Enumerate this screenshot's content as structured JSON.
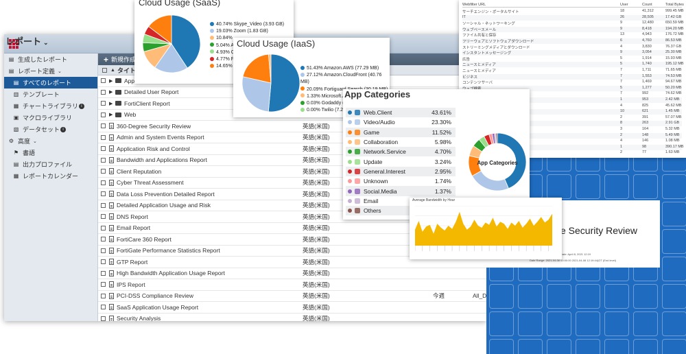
{
  "main": {
    "app_title": "レポート",
    "sidebar": [
      {
        "label": "生成したレポート",
        "icon": "document-icon",
        "sub": false,
        "active": false
      },
      {
        "label": "レポート定義",
        "icon": "document-icon",
        "sub": false,
        "active": false,
        "chevron": true
      },
      {
        "label": "すべてのレポート",
        "icon": "document-icon",
        "sub": true,
        "active": true
      },
      {
        "label": "テンプレート",
        "icon": "template-icon",
        "sub": true,
        "active": false
      },
      {
        "label": "チャートライブラリ",
        "icon": "chart-icon",
        "sub": true,
        "active": false,
        "info": true
      },
      {
        "label": "マクロライブラリ",
        "icon": "macro-icon",
        "sub": true,
        "active": false
      },
      {
        "label": "データセット",
        "icon": "dataset-icon",
        "sub": true,
        "active": false,
        "info": true
      },
      {
        "label": "高度",
        "icon": "gear-icon",
        "sub": false,
        "active": false,
        "chevron": true
      },
      {
        "label": "書語",
        "icon": "flag-icon",
        "sub": true,
        "active": false
      },
      {
        "label": "出力プロファイル",
        "icon": "output-icon",
        "sub": true,
        "active": false
      },
      {
        "label": "レポートカレンダー",
        "icon": "calendar-icon",
        "sub": true,
        "active": false
      }
    ],
    "toolbar_new": "新規作成",
    "header_name": "タイトル",
    "rows": [
      {
        "name": "Application",
        "type": "folder",
        "lang": "",
        "sched": "",
        "tag": ""
      },
      {
        "name": "Detailed User Report",
        "type": "folder",
        "lang": "",
        "sched": "",
        "tag": ""
      },
      {
        "name": "FortiClient Report",
        "type": "folder",
        "lang": "",
        "sched": "",
        "tag": ""
      },
      {
        "name": "Web",
        "type": "folder",
        "lang": "",
        "sched": "",
        "tag": ""
      },
      {
        "name": "360-Degree Security Review",
        "type": "doc",
        "lang": "英語(米国)",
        "sched": "",
        "tag": ""
      },
      {
        "name": "Admin and System Events Report",
        "type": "doc",
        "lang": "英語(米国)",
        "sched": "",
        "tag": ""
      },
      {
        "name": "Application Risk and Control",
        "type": "doc",
        "lang": "英語(米国)",
        "sched": "",
        "tag": ""
      },
      {
        "name": "Bandwidth and Applications Report",
        "type": "doc",
        "lang": "英語(米国)",
        "sched": "",
        "tag": ""
      },
      {
        "name": "Client Reputation",
        "type": "doc",
        "lang": "英語(米国)",
        "sched": "",
        "tag": ""
      },
      {
        "name": "Cyber Threat Assessment",
        "type": "doc",
        "lang": "英語(米国)",
        "sched": "",
        "tag": ""
      },
      {
        "name": "Data Loss Prevention Detailed Report",
        "type": "doc",
        "lang": "英語(米国)",
        "sched": "",
        "tag": ""
      },
      {
        "name": "Detailed Application Usage and Risk",
        "type": "doc",
        "lang": "英語(米国)",
        "sched": "",
        "tag": ""
      },
      {
        "name": "DNS Report",
        "type": "doc",
        "lang": "英語(米国)",
        "sched": "",
        "tag": ""
      },
      {
        "name": "Email Report",
        "type": "doc",
        "lang": "英語(米国)",
        "sched": "",
        "tag": ""
      },
      {
        "name": "FortiCare 360 Report",
        "type": "doc",
        "lang": "英語(米国)",
        "sched": "",
        "tag": ""
      },
      {
        "name": "FortiGate Performance Statistics Report",
        "type": "doc",
        "lang": "英語(米国)",
        "sched": "",
        "tag": ""
      },
      {
        "name": "GTP Report",
        "type": "doc",
        "lang": "英語(米国)",
        "sched": "",
        "tag": ""
      },
      {
        "name": "High Bandwidth Application Usage Report",
        "type": "doc",
        "lang": "英語(米国)",
        "sched": "",
        "tag": ""
      },
      {
        "name": "IPS Report",
        "type": "doc",
        "lang": "英語(米国)",
        "sched": "",
        "tag": ""
      },
      {
        "name": "PCI-DSS Compliance Review",
        "type": "doc",
        "lang": "英語(米国)",
        "sched": "今週",
        "tag": "All_D"
      },
      {
        "name": "SaaS Application Usage Report",
        "type": "doc",
        "lang": "英語(米国)",
        "sched": "",
        "tag": ""
      },
      {
        "name": "Security Analysis",
        "type": "doc",
        "lang": "英語(米国)",
        "sched": "",
        "tag": ""
      }
    ]
  },
  "saas": {
    "title": "Cloud Usage (SaaS)",
    "legend": [
      {
        "label": "40.74% Skype_Video (3.93 GB)",
        "color": "#1f77b4"
      },
      {
        "label": "19.03% Zoom (1.83 GB)",
        "color": "#aec7e8"
      },
      {
        "label": "10.84%",
        "color": "#ffbb78"
      },
      {
        "label": "5.04% A",
        "color": "#2ca02c"
      },
      {
        "label": "4.93% C",
        "color": "#98df8a"
      },
      {
        "label": "4.77% F",
        "color": "#d62728"
      },
      {
        "label": "14.65% C",
        "color": "#ff7f0e"
      }
    ],
    "chart_data": {
      "type": "pie",
      "values": [
        40.74,
        19.03,
        10.84,
        5.04,
        4.93,
        4.77,
        14.65
      ],
      "colors": [
        "#1f77b4",
        "#aec7e8",
        "#ffbb78",
        "#2ca02c",
        "#98df8a",
        "#d62728",
        "#ff7f0e"
      ]
    }
  },
  "iaas": {
    "title": "Cloud Usage (IaaS)",
    "legend": [
      {
        "label": "51.43% Amazon.AWS (77.29 MB)",
        "color": "#1f77b4"
      },
      {
        "label": "27.12% Amazon.CloudFront (40.76 MB)",
        "color": "#aec7e8"
      },
      {
        "label": "20.09% Fortiguard.Search (30.19 MB)",
        "color": "#ff7f0e"
      },
      {
        "label": "1.33% Microsoft.Azure (1.99 MB)",
        "color": "#ffbb78"
      },
      {
        "label": "0.03% Godaddy (4",
        "color": "#2ca02c"
      },
      {
        "label": "0.00% Twilio (7.23",
        "color": "#98df8a"
      }
    ],
    "chart_data": {
      "type": "pie",
      "values": [
        51.43,
        27.12,
        20.09,
        1.33,
        0.03,
        0.0
      ],
      "colors": [
        "#1f77b4",
        "#aec7e8",
        "#ff7f0e",
        "#ffbb78",
        "#2ca02c",
        "#98df8a"
      ]
    }
  },
  "webfilter": {
    "headers": [
      "Webfilter URL",
      "User",
      "Count",
      "Total Bytes"
    ],
    "rows": [
      [
        "サーチエンジン・ポータルサイト",
        "18",
        "41,312",
        "999.45 MB"
      ],
      [
        "IT",
        "26",
        "28,505",
        "17.42 GB"
      ],
      [
        "ソーシャル・ネットワーキング",
        "9",
        "12,480",
        "650.59 MB"
      ],
      [
        "ウェブベースメール",
        "9",
        "8,418",
        "194.20 MB"
      ],
      [
        "ファイル共有と保存",
        "13",
        "4,943",
        "176.72 MB"
      ],
      [
        "フリーウェアとソフトウェアダウンロード",
        "6",
        "4,760",
        "86.53 MB"
      ],
      [
        "ストリーミングメディアとダウンロード",
        "4",
        "3,830",
        "76.37 GB"
      ],
      [
        "インスタントメッセージング",
        "9",
        "3,054",
        "25.30 MB"
      ],
      [
        "広告",
        "5",
        "1,914",
        "15.93 MB"
      ],
      [
        "ニュースとメディア",
        "5",
        "1,740",
        "195.12 MB"
      ],
      [
        "ニュースとメディア",
        "7",
        "1,711",
        "71.65 MB"
      ],
      [
        "ビジネス",
        "7",
        "1,553",
        "74.53 MB"
      ],
      [
        "コンテンツサーバ",
        "7",
        "1,469",
        "94.67 MB"
      ],
      [
        "ウェブ検索",
        "5",
        "1,277",
        "50.20 MB"
      ],
      [
        "",
        "7",
        "992",
        "74.62 MB"
      ],
      [
        "",
        "1",
        "953",
        "2.42 MB"
      ],
      [
        "",
        "4",
        "825",
        "45.62 MB"
      ],
      [
        "",
        "10",
        "621",
        "1.45 MB"
      ],
      [
        "",
        "2",
        "391",
        "57.07 MB"
      ],
      [
        "",
        "8",
        "263",
        "2.91 GB"
      ],
      [
        "",
        "3",
        "164",
        "5.32 MB"
      ],
      [
        "",
        "2",
        "148",
        "5.49 MB"
      ],
      [
        "",
        "4",
        "146",
        "1.08 MB"
      ],
      [
        "",
        "1",
        "98",
        "390.17 MB"
      ],
      [
        "",
        "2",
        "77",
        "1.63 MB"
      ]
    ]
  },
  "security_review": {
    "title": "e Security Review",
    "date": "Date: April 8, 2021 12:19",
    "range": "Date Range: 2021-04-08 00:00:00 2021-04-08 12:19:44(GT (End level)"
  },
  "app_categories": {
    "title": "App Categories",
    "donut_label": "App Categories",
    "rows": [
      {
        "name": "Web.Client",
        "pct": "43.61%",
        "color": "#1f77b4"
      },
      {
        "name": "Video/Audio",
        "pct": "23.30%",
        "color": "#aec7e8"
      },
      {
        "name": "Game",
        "pct": "11.52%",
        "color": "#ff7f0e"
      },
      {
        "name": "Collaboration",
        "pct": "5.98%",
        "color": "#ffbb78"
      },
      {
        "name": "Network.Service",
        "pct": "4.70%",
        "color": "#2ca02c"
      },
      {
        "name": "Update",
        "pct": "3.24%",
        "color": "#98df8a"
      },
      {
        "name": "General.Interest",
        "pct": "2.95%",
        "color": "#d62728"
      },
      {
        "name": "Unknown",
        "pct": "1.74%",
        "color": "#ff9896"
      },
      {
        "name": "Social.Media",
        "pct": "1.37%",
        "color": "#9467bd"
      },
      {
        "name": "Email",
        "pct": "",
        "color": "#c5b0d5"
      },
      {
        "name": "Others",
        "pct": "",
        "color": "#8c564b"
      }
    ],
    "chart_data": {
      "type": "pie",
      "values": [
        43.61,
        23.3,
        11.52,
        5.98,
        4.7,
        3.24,
        2.95,
        1.74,
        1.37,
        0.8,
        0.79
      ],
      "colors": [
        "#1f77b4",
        "#aec7e8",
        "#ff7f0e",
        "#ffbb78",
        "#2ca02c",
        "#98df8a",
        "#d62728",
        "#ff9896",
        "#9467bd",
        "#c5b0d5",
        "#8c564b"
      ]
    }
  },
  "bandwidth": {
    "title": "Average Bandwidth by Hour",
    "chart_data": {
      "type": "area",
      "values": [
        40,
        62,
        35,
        48,
        52,
        30,
        55,
        45,
        38,
        50,
        42,
        60,
        85,
        55,
        40,
        48,
        65,
        50,
        45,
        58,
        52,
        70,
        48,
        60,
        55,
        42,
        58,
        50,
        62,
        45,
        55,
        68,
        50,
        60,
        72,
        58,
        65,
        80
      ],
      "color": "#f5b800"
    }
  }
}
